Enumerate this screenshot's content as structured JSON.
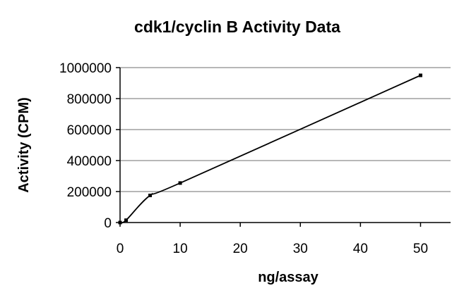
{
  "chart_data": {
    "type": "line",
    "title": "cdk1/cyclin B Activity Data",
    "xlabel": "ng/assay",
    "ylabel": "Activity (CPM)",
    "x": [
      0,
      1,
      5,
      10,
      50
    ],
    "series": [
      {
        "values": [
          0,
          15000,
          175000,
          255000,
          950000
        ]
      }
    ],
    "xlim": [
      0,
      55
    ],
    "ylim": [
      0,
      1000000
    ],
    "xticks": [
      0,
      10,
      20,
      30,
      40,
      50
    ],
    "yticks": [
      0,
      200000,
      400000,
      600000,
      800000,
      1000000
    ],
    "xtick_labels": [
      "0",
      "10",
      "20",
      "30",
      "40",
      "50"
    ],
    "ytick_labels": [
      "0",
      "200000",
      "400000",
      "600000",
      "800000",
      "1000000"
    ],
    "grid": {
      "y": true,
      "x": false
    },
    "legend": "none",
    "line_color": "#000000",
    "grid_color": "#8c8c8c"
  }
}
